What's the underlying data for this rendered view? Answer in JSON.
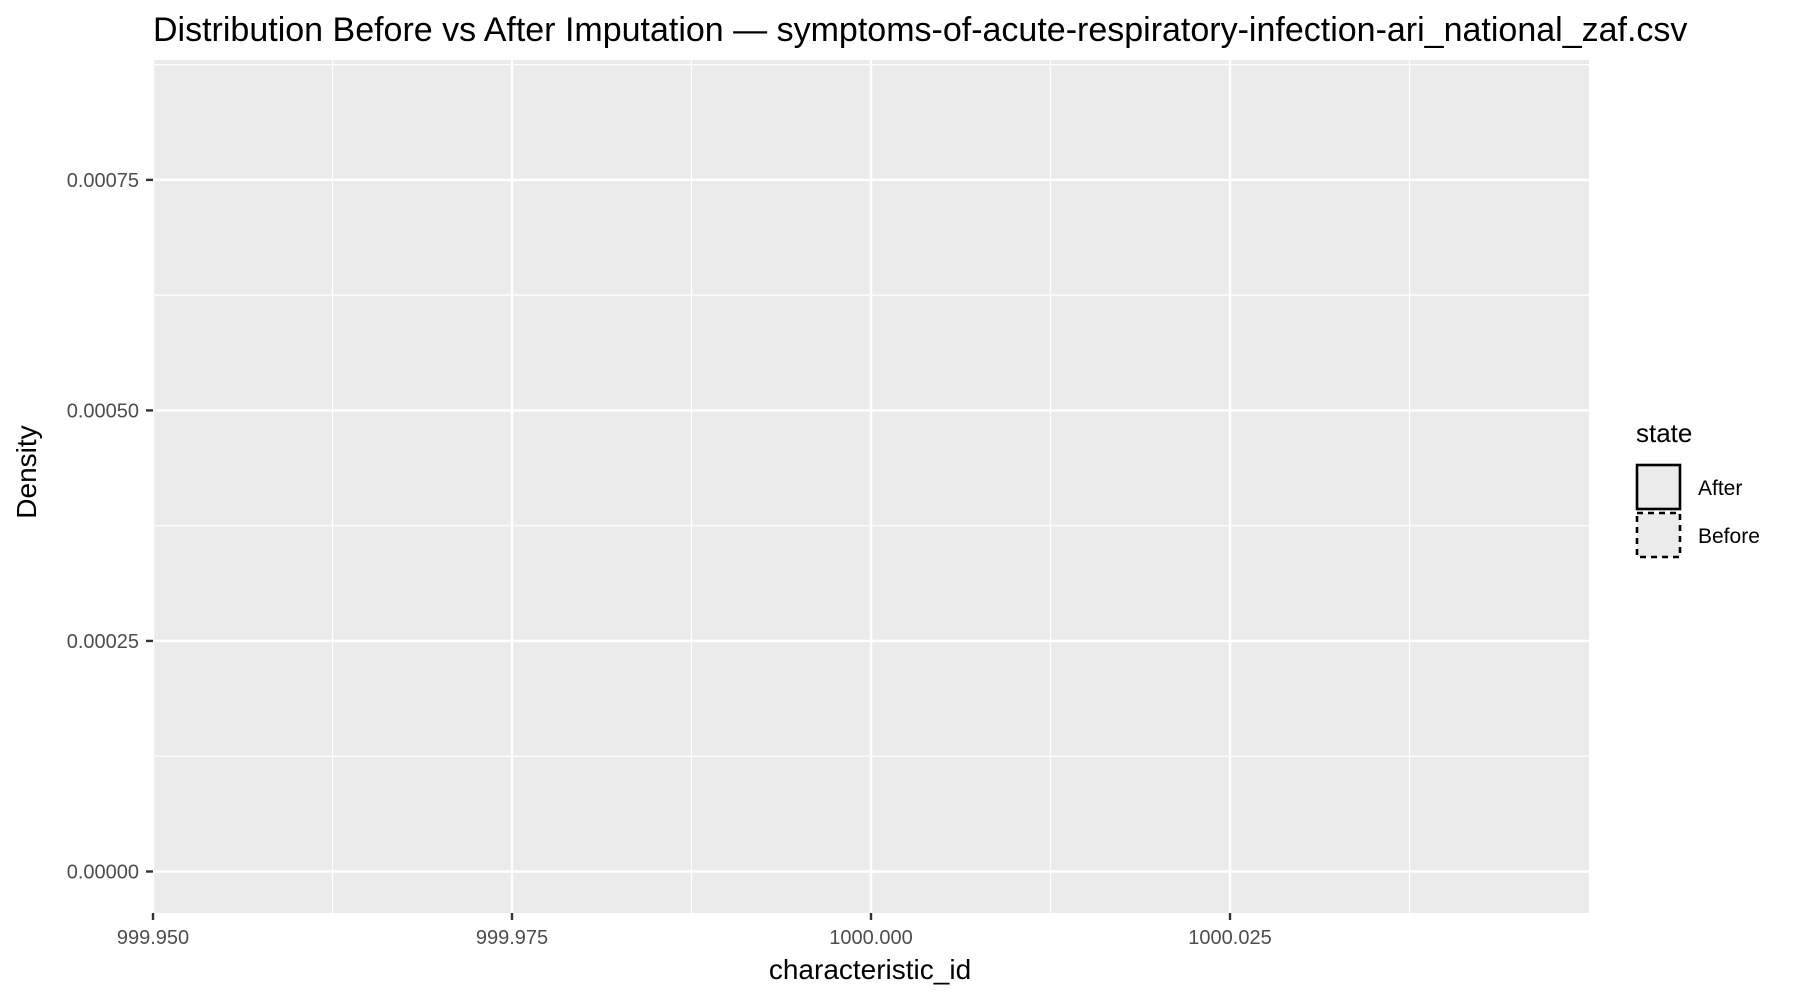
{
  "chart_data": {
    "type": "area",
    "title": "Distribution Before vs After Imputation — symptoms-of-acute-respiratory-infection-ari_national_zaf.csv",
    "xlabel": "characteristic_id",
    "ylabel": "Density",
    "xlim": [
      999.95,
      1000.05
    ],
    "ylim": [
      -4.5e-05,
      0.00088
    ],
    "x_ticks": [
      {
        "value": 999.95,
        "label": "999.950"
      },
      {
        "value": 999.975,
        "label": "999.975"
      },
      {
        "value": 1000.0,
        "label": "1000.000"
      },
      {
        "value": 1000.025,
        "label": "1000.025"
      }
    ],
    "x_minor_ticks": [
      999.9625,
      999.9875,
      1000.0125,
      1000.0375
    ],
    "y_ticks": [
      {
        "value": 0.0,
        "label": "0.00000"
      },
      {
        "value": 0.00025,
        "label": "0.00025"
      },
      {
        "value": 0.0005,
        "label": "0.00050"
      },
      {
        "value": 0.00075,
        "label": "0.00075"
      }
    ],
    "y_minor_ticks": [
      0.000125,
      0.000375,
      0.000625,
      0.000875
    ],
    "grid": true,
    "panel_background": "#ebebeb",
    "grid_color": "#ffffff",
    "legend": {
      "title": "state",
      "position": "right",
      "entries": [
        {
          "name": "After",
          "linetype": "solid"
        },
        {
          "name": "Before",
          "linetype": "dashed"
        }
      ]
    },
    "series": [
      {
        "name": "After",
        "x": [],
        "y": []
      },
      {
        "name": "Before",
        "x": [],
        "y": []
      }
    ]
  }
}
